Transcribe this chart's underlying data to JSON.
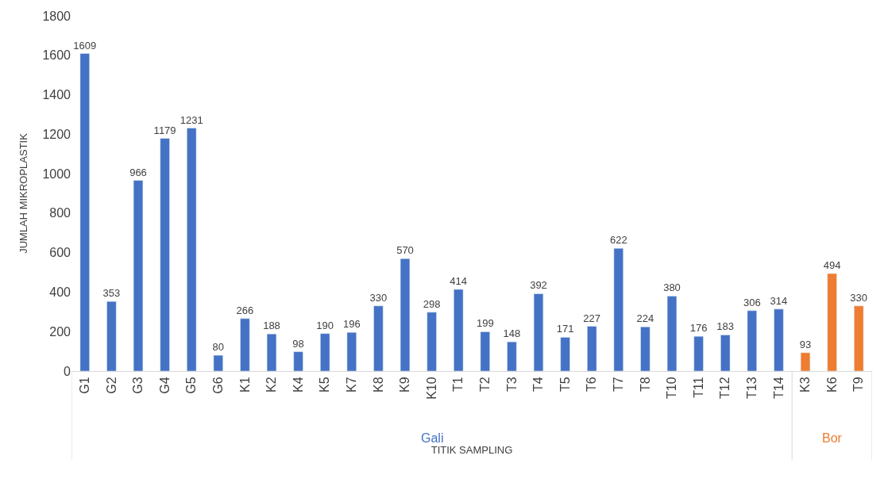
{
  "chart_data": {
    "type": "bar",
    "xlabel": "TITIK SAMPLING",
    "ylabel": "JUMLAH MIKROPLASTIK",
    "categories": [
      "G1",
      "G2",
      "G3",
      "G4",
      "G5",
      "G6",
      "K1",
      "K2",
      "K4",
      "K5",
      "K7",
      "K8",
      "K9",
      "K10",
      "T1",
      "T2",
      "T3",
      "T4",
      "T5",
      "T6",
      "T7",
      "T8",
      "T10",
      "T11",
      "T12",
      "T13",
      "T14",
      "K3",
      "K6",
      "T9"
    ],
    "series": [
      {
        "name": "Gali",
        "color": "#4472c4",
        "values": [
          1609,
          353,
          966,
          1179,
          1231,
          80,
          266,
          188,
          98,
          190,
          196,
          330,
          570,
          298,
          414,
          199,
          148,
          392,
          171,
          227,
          622,
          224,
          380,
          176,
          183,
          306,
          314,
          null,
          null,
          null
        ]
      },
      {
        "name": "Bor",
        "color": "#ed7d31",
        "values": [
          null,
          null,
          null,
          null,
          null,
          null,
          null,
          null,
          null,
          null,
          null,
          null,
          null,
          null,
          null,
          null,
          null,
          null,
          null,
          null,
          null,
          null,
          null,
          null,
          null,
          null,
          null,
          93,
          494,
          330
        ]
      }
    ],
    "ylim": [
      0,
      1800
    ],
    "yticks": [
      0,
      200,
      400,
      600,
      800,
      1000,
      1200,
      1400,
      1600,
      1800
    ],
    "data_labels": true,
    "grid": false,
    "legend": false
  }
}
